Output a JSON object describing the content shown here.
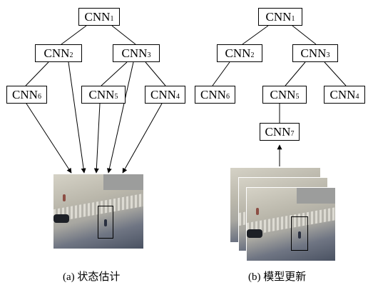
{
  "nodes": {
    "a": {
      "cnn1": {
        "base": "CNN",
        "sub": "1"
      },
      "cnn2": {
        "base": "CNN",
        "sub": "2"
      },
      "cnn3": {
        "base": "CNN",
        "sub": "3"
      },
      "cnn4": {
        "base": "CNN",
        "sub": "4"
      },
      "cnn5": {
        "base": "CNN",
        "sub": "5"
      },
      "cnn6": {
        "base": "CNN",
        "sub": "6"
      }
    },
    "b": {
      "cnn1": {
        "base": "CNN",
        "sub": "1"
      },
      "cnn2": {
        "base": "CNN",
        "sub": "2"
      },
      "cnn3": {
        "base": "CNN",
        "sub": "3"
      },
      "cnn4": {
        "base": "CNN",
        "sub": "4"
      },
      "cnn5": {
        "base": "CNN",
        "sub": "5"
      },
      "cnn6": {
        "base": "CNN",
        "sub": "6"
      },
      "cnn7": {
        "base": "CNN",
        "sub": "7"
      }
    }
  },
  "captions": {
    "a": "(a) 状态估计",
    "b": "(b) 模型更新"
  },
  "colors": {
    "line": "#000000",
    "plaza_light": "#c9c6bb",
    "plaza_mid": "#9a9a96",
    "shadow": "#4a5262"
  }
}
